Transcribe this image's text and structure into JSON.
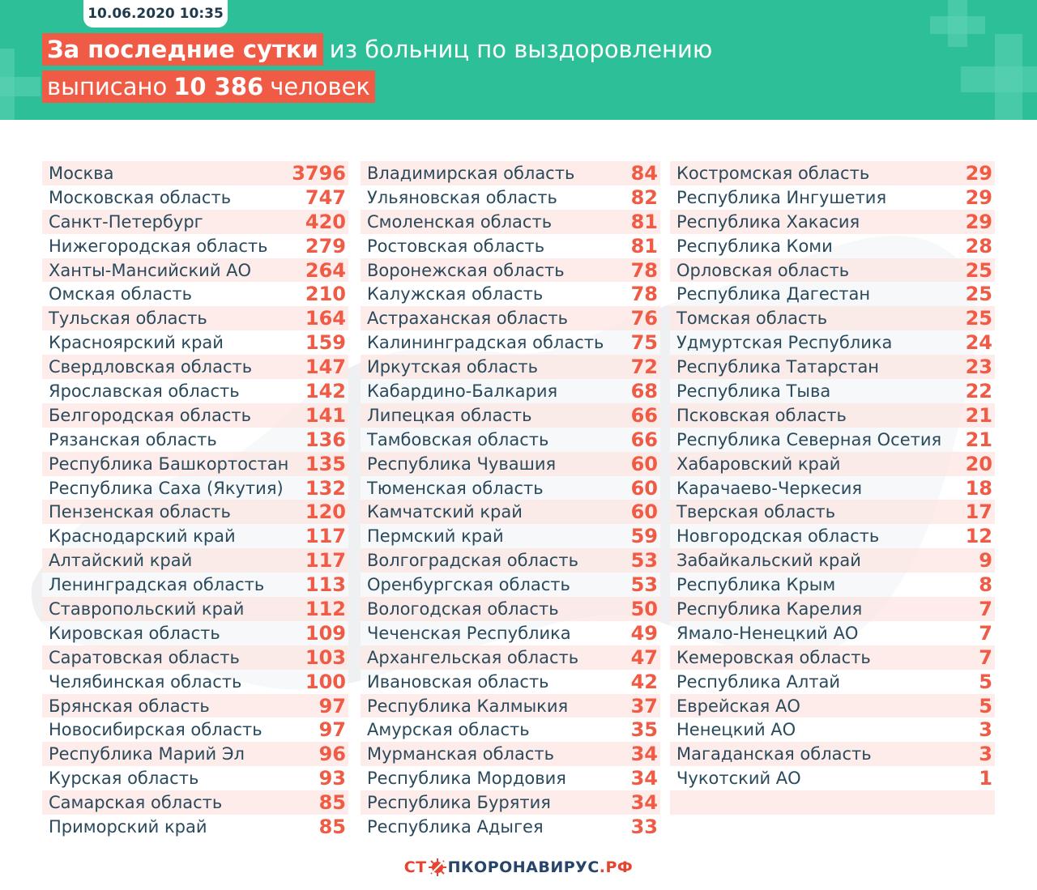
{
  "header": {
    "date": "10.06.2020 10:35",
    "headline_highlight": "За последние сутки",
    "headline_rest": "из больниц по выздоровлению",
    "line2_prefix": "выписано",
    "line2_number": "10 386",
    "line2_suffix": "человек"
  },
  "columns": [
    [
      {
        "name": "Москва",
        "value": "3796"
      },
      {
        "name": "Московская область",
        "value": "747"
      },
      {
        "name": "Санкт-Петербург",
        "value": "420"
      },
      {
        "name": "Нижегородская область",
        "value": "279"
      },
      {
        "name": "Ханты-Мансийский АО",
        "value": "264"
      },
      {
        "name": "Омская область",
        "value": "210"
      },
      {
        "name": "Тульская область",
        "value": "164"
      },
      {
        "name": "Красноярский край",
        "value": "159"
      },
      {
        "name": "Свердловская область",
        "value": "147"
      },
      {
        "name": "Ярославская область",
        "value": "142"
      },
      {
        "name": "Белгородская область",
        "value": "141"
      },
      {
        "name": "Рязанская область",
        "value": "136"
      },
      {
        "name": "Республика Башкортостан",
        "value": "135"
      },
      {
        "name": "Республика Саха (Якутия)",
        "value": "132"
      },
      {
        "name": "Пензенская область",
        "value": "120"
      },
      {
        "name": "Краснодарский край",
        "value": "117"
      },
      {
        "name": "Алтайский край",
        "value": "117"
      },
      {
        "name": "Ленинградская область",
        "value": "113"
      },
      {
        "name": "Ставропольский край",
        "value": "112"
      },
      {
        "name": "Кировская область",
        "value": "109"
      },
      {
        "name": "Саратовская область",
        "value": "103"
      },
      {
        "name": "Челябинская область",
        "value": "100"
      },
      {
        "name": "Брянская область",
        "value": "97"
      },
      {
        "name": "Новосибирская область",
        "value": "97"
      },
      {
        "name": "Республика Марий Эл",
        "value": "96"
      },
      {
        "name": "Курская область",
        "value": "93"
      },
      {
        "name": "Самарская область",
        "value": "85"
      },
      {
        "name": "Приморский край",
        "value": "85"
      }
    ],
    [
      {
        "name": "Владимирская область",
        "value": "84"
      },
      {
        "name": "Ульяновская область",
        "value": "82"
      },
      {
        "name": "Смоленская область",
        "value": "81"
      },
      {
        "name": "Ростовская область",
        "value": "81"
      },
      {
        "name": "Воронежская область",
        "value": "78"
      },
      {
        "name": "Калужская область",
        "value": "78"
      },
      {
        "name": "Астраханская область",
        "value": "76"
      },
      {
        "name": "Калининградская область",
        "value": "75"
      },
      {
        "name": "Иркутская область",
        "value": "72"
      },
      {
        "name": "Кабардино-Балкария",
        "value": "68"
      },
      {
        "name": "Липецкая область",
        "value": "66"
      },
      {
        "name": "Тамбовская область",
        "value": "66"
      },
      {
        "name": "Республика Чувашия",
        "value": "60"
      },
      {
        "name": "Тюменская область",
        "value": "60"
      },
      {
        "name": "Камчатский край",
        "value": "60"
      },
      {
        "name": "Пермский край",
        "value": "59"
      },
      {
        "name": "Волгоградская область",
        "value": "53"
      },
      {
        "name": "Оренбургская область",
        "value": "53"
      },
      {
        "name": "Вологодская область",
        "value": "50"
      },
      {
        "name": "Чеченская Республика",
        "value": "49"
      },
      {
        "name": "Архангельская область",
        "value": "47"
      },
      {
        "name": "Ивановская область",
        "value": "42"
      },
      {
        "name": "Республика Калмыкия",
        "value": "37"
      },
      {
        "name": "Амурская область",
        "value": "35"
      },
      {
        "name": "Мурманская область",
        "value": "34"
      },
      {
        "name": "Республика Мордовия",
        "value": "34"
      },
      {
        "name": "Республика Бурятия",
        "value": "34"
      },
      {
        "name": "Республика Адыгея",
        "value": "33"
      }
    ],
    [
      {
        "name": "Костромская область",
        "value": "29"
      },
      {
        "name": "Республика Ингушетия",
        "value": "29"
      },
      {
        "name": "Республика Хакасия",
        "value": "29"
      },
      {
        "name": "Республика Коми",
        "value": "28"
      },
      {
        "name": "Орловская область",
        "value": "25"
      },
      {
        "name": "Республика Дагестан",
        "value": "25"
      },
      {
        "name": "Томская область",
        "value": "25"
      },
      {
        "name": "Удмуртская Республика",
        "value": "24"
      },
      {
        "name": "Республика Татарстан",
        "value": "23"
      },
      {
        "name": "Республика Тыва",
        "value": "22"
      },
      {
        "name": "Псковская область",
        "value": "21"
      },
      {
        "name": "Республика Северная Осетия",
        "value": "21"
      },
      {
        "name": " Хабаровский край",
        "value": "20"
      },
      {
        "name": "Карачаево-Черкесия",
        "value": "18"
      },
      {
        "name": "Тверская область",
        "value": "17"
      },
      {
        "name": "Новгородская область",
        "value": "12"
      },
      {
        "name": "Забайкальский край",
        "value": "9"
      },
      {
        "name": "Республика Крым",
        "value": "8"
      },
      {
        "name": "Республика Карелия",
        "value": "7"
      },
      {
        "name": "Ямало-Ненецкий АО",
        "value": "7"
      },
      {
        "name": "Кемеровская область",
        "value": "7"
      },
      {
        "name": "Республика Алтай",
        "value": "5"
      },
      {
        "name": "Еврейская АО",
        "value": "5"
      },
      {
        "name": "Ненецкий АО",
        "value": "3"
      },
      {
        "name": "Магаданская область",
        "value": "3"
      },
      {
        "name": "Чукотский АО",
        "value": "1"
      }
    ]
  ],
  "footer": {
    "logo_part1": "СТ",
    "logo_part2": "ПКОРОНАВИРУС",
    "logo_part3": ".РФ",
    "virus_icon": "coronavirus-icon"
  },
  "colors": {
    "header_bg": "#2dbf98",
    "accent": "#ef5b45",
    "text_dark": "#2a4a5c",
    "row_tint": "#fde9e6"
  }
}
